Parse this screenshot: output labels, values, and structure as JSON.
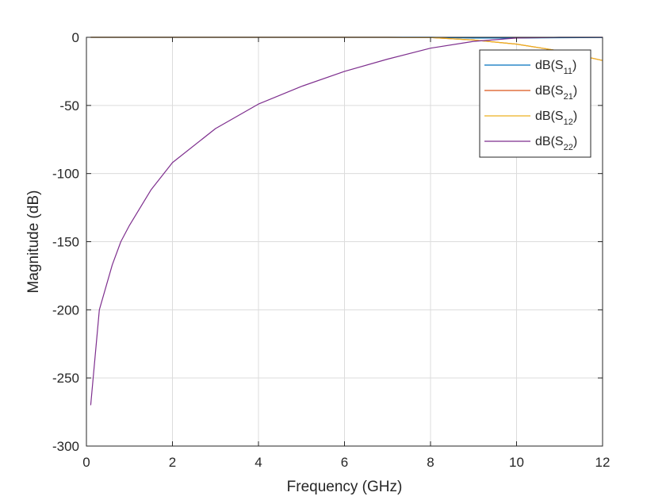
{
  "chart_data": {
    "type": "line",
    "xlabel": "Frequency (GHz)",
    "ylabel": "Magnitude (dB)",
    "xlim": [
      0,
      12
    ],
    "ylim": [
      -300,
      0
    ],
    "xticks": [
      0,
      2,
      4,
      6,
      8,
      10,
      12
    ],
    "yticks": [
      -300,
      -250,
      -200,
      -150,
      -100,
      -50,
      0
    ],
    "grid": true,
    "legend_position": "top-right",
    "x": [
      0.1,
      0.3,
      0.6,
      0.8,
      1,
      1.5,
      2,
      3,
      4,
      5,
      6,
      7,
      8,
      9,
      10,
      11,
      12
    ],
    "series": [
      {
        "name": "S11",
        "color": "#0072BD",
        "values": [
          0,
          0,
          0,
          0,
          0,
          0,
          0,
          0,
          0,
          0,
          0,
          0,
          0,
          -0.5,
          -0.5,
          -0.3,
          -0.2
        ]
      },
      {
        "name": "S21",
        "color": "#D95319",
        "values": [
          0,
          0,
          0,
          0,
          0,
          0,
          0,
          0,
          0,
          0,
          0,
          0,
          -0.2,
          -2,
          -5,
          -10,
          -17
        ]
      },
      {
        "name": "S12",
        "color": "#EDB120",
        "values": [
          0,
          0,
          0,
          0,
          0,
          0,
          0,
          0,
          0,
          0,
          0,
          0,
          -0.2,
          -2,
          -5,
          -10,
          -17
        ]
      },
      {
        "name": "S22",
        "color": "#7E2F8E",
        "values": [
          -270,
          -200,
          -167,
          -150,
          -138,
          -112,
          -92,
          -67,
          -49,
          -36,
          -25,
          -16,
          -8,
          -3,
          -0.5,
          0,
          0
        ]
      }
    ]
  }
}
